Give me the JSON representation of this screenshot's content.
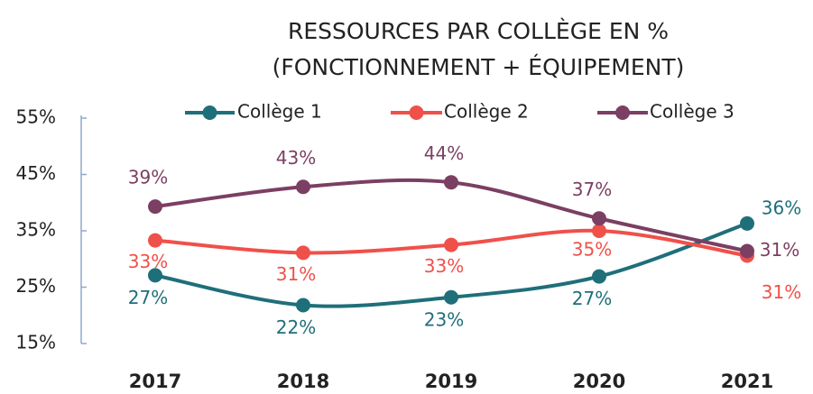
{
  "chart_data": {
    "type": "line",
    "title": [
      "RESSOURCES PAR COLLÈGE EN %",
      "(FONCTIONNEMENT + ÉQUIPEMENT)"
    ],
    "categories": [
      "2017",
      "2018",
      "2019",
      "2020",
      "2021"
    ],
    "series": [
      {
        "name": "Collège 1",
        "color": "#1f6f7a",
        "values": [
          27.1,
          21.8,
          23.2,
          26.9,
          36.3
        ],
        "value_labels": [
          "27%",
          "22%",
          "23%",
          "27%",
          "36%"
        ]
      },
      {
        "name": "Collège 2",
        "color": "#f0504a",
        "values": [
          33.3,
          31.1,
          32.5,
          35.0,
          30.6
        ],
        "value_labels": [
          "33%",
          "31%",
          "33%",
          "35%",
          "31%"
        ]
      },
      {
        "name": "Collège 3",
        "color": "#7b3f63",
        "values": [
          39.3,
          42.8,
          43.6,
          37.2,
          31.4
        ],
        "value_labels": [
          "39%",
          "43%",
          "44%",
          "37%",
          "31%"
        ]
      }
    ],
    "ylim": [
      15,
      55
    ],
    "yticks": [
      {
        "value": 15,
        "label": "15%"
      },
      {
        "value": 25,
        "label": "25%"
      },
      {
        "value": 35,
        "label": "35%"
      },
      {
        "value": 45,
        "label": "45%"
      },
      {
        "value": 55,
        "label": "55%"
      }
    ],
    "legend": "top"
  }
}
